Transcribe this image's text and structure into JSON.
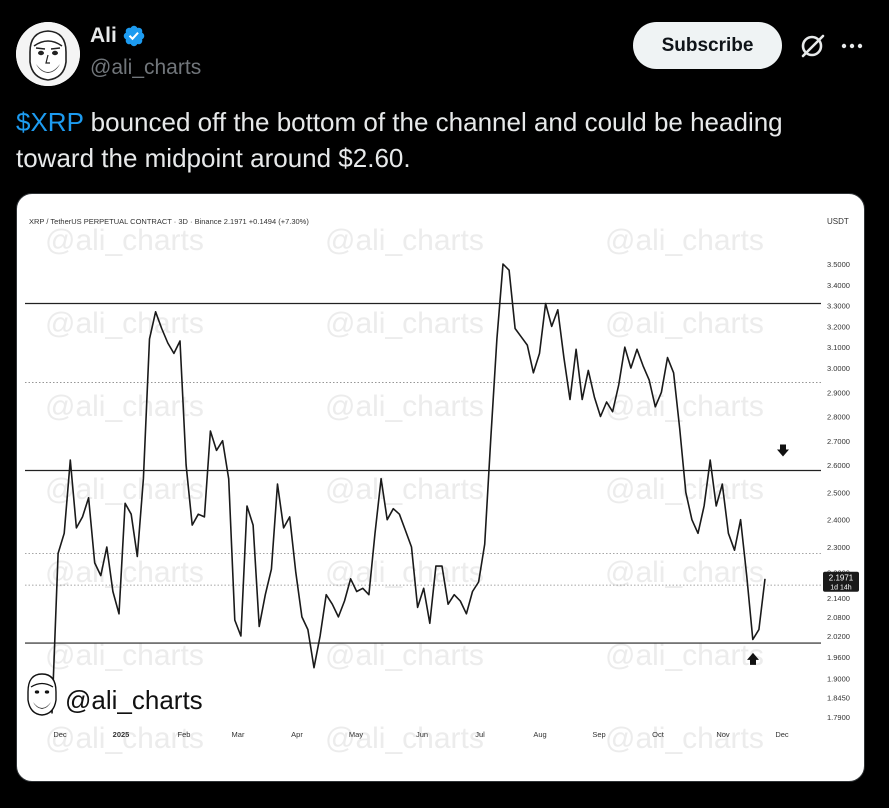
{
  "author": {
    "name": "Ali",
    "handle": "@ali_charts"
  },
  "actions": {
    "subscribe_label": "Subscribe"
  },
  "tweet": {
    "cashtag": "$XRP",
    "text_line1": " bounced off the bottom of the channel and could be heading",
    "text_line2": "toward the midpoint around $2.60."
  },
  "icons": [
    "verified-badge-icon",
    "grok-icon",
    "more-icon",
    "arrow-down-icon",
    "arrow-up-icon"
  ],
  "colors": {
    "accent": "#1d9bf0",
    "background": "#000000",
    "muted": "#71767b"
  },
  "chart_data": {
    "type": "line",
    "title": "XRP / TetherUS PERPETUAL CONTRACT · 3D · Binance  2.1971  +0.1494 (+7.30%)",
    "ylabel": "USDT",
    "ylim": [
      1.75,
      3.55
    ],
    "y_ticks": [
      "3.5000",
      "3.4000",
      "3.3000",
      "3.2000",
      "3.1000",
      "3.0000",
      "2.9000",
      "2.8000",
      "2.7000",
      "2.6000",
      "2.5000",
      "2.4000",
      "2.3000",
      "2.2200",
      "2.1400",
      "2.0800",
      "2.0200",
      "1.9600",
      "1.9000",
      "1.8450",
      "1.7900"
    ],
    "x_ticks": [
      "Dec",
      "2025",
      "Feb",
      "Mar",
      "Apr",
      "May",
      "Jun",
      "Jul",
      "Aug",
      "Sep",
      "Oct",
      "Nov",
      "Dec"
    ],
    "last_price": "2.1971",
    "countdown": "1d 14h",
    "watermark": "@ali_charts",
    "channel_levels": [
      3.31,
      2.58,
      2.0
    ],
    "dotted_levels": [
      2.94,
      2.28,
      2.18
    ],
    "series": [
      {
        "values": [
          1.8,
          2.28,
          2.35,
          2.62,
          2.37,
          2.41,
          2.48,
          2.25,
          2.21,
          2.3,
          2.16,
          2.09,
          2.46,
          2.42,
          2.27,
          2.55,
          3.14,
          3.27,
          3.19,
          3.12,
          3.07,
          3.13,
          2.6,
          2.38,
          2.42,
          2.41,
          2.74,
          2.66,
          2.7,
          2.55,
          2.07,
          2.02,
          2.45,
          2.38,
          2.05,
          2.15,
          2.23,
          2.53,
          2.37,
          2.41,
          2.22,
          2.08,
          2.04,
          1.93,
          2.02,
          2.15,
          2.12,
          2.08,
          2.13,
          2.2,
          2.16,
          2.17,
          2.15,
          2.35,
          2.55,
          2.4,
          2.44,
          2.42,
          2.36,
          2.3,
          2.11,
          2.17,
          2.06,
          2.24,
          2.24,
          2.12,
          2.15,
          2.13,
          2.09,
          2.16,
          2.19,
          2.31,
          2.71,
          3.14,
          3.5,
          3.47,
          3.19,
          3.15,
          3.11,
          2.98,
          3.07,
          3.31,
          3.2,
          3.28,
          3.05,
          2.87,
          3.09,
          2.87,
          2.99,
          2.88,
          2.8,
          2.86,
          2.82,
          2.93,
          3.1,
          3.0,
          3.09,
          3.01,
          2.95,
          2.84,
          2.9,
          3.05,
          2.98,
          2.75,
          2.5,
          2.4,
          2.35,
          2.45,
          2.62,
          2.45,
          2.53,
          2.35,
          2.29,
          2.4,
          2.21,
          2.01,
          2.04,
          2.2
        ]
      }
    ],
    "annotations": [
      {
        "type": "arrow-down",
        "near": "2.65"
      },
      {
        "type": "arrow-up",
        "near": "1.96"
      }
    ]
  }
}
